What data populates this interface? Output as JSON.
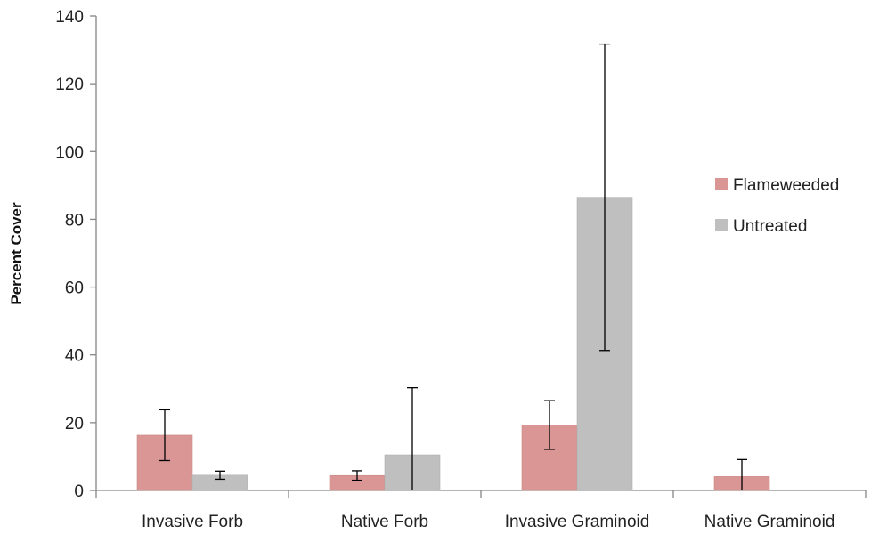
{
  "chart_data": {
    "type": "bar",
    "title": "",
    "xlabel": "",
    "ylabel": "Percent Cover",
    "ylim": [
      0,
      140
    ],
    "yticks": [
      0,
      20,
      40,
      60,
      80,
      100,
      120,
      140
    ],
    "categories": [
      "Invasive Forb",
      "Native Forb",
      "Invasive Graminoid",
      "Native Graminoid"
    ],
    "series": [
      {
        "name": "Flameweeded",
        "color": "#d99694",
        "values": [
          16.3,
          4.4,
          19.3,
          4.1
        ],
        "error": [
          7.5,
          1.4,
          7.2,
          5.0
        ]
      },
      {
        "name": "Untreated",
        "color": "#bfbfbf",
        "values": [
          4.5,
          10.5,
          86.5,
          0
        ],
        "error": [
          1.2,
          19.8,
          45.2,
          0
        ]
      }
    ],
    "legend_position": "right",
    "grid": false
  }
}
